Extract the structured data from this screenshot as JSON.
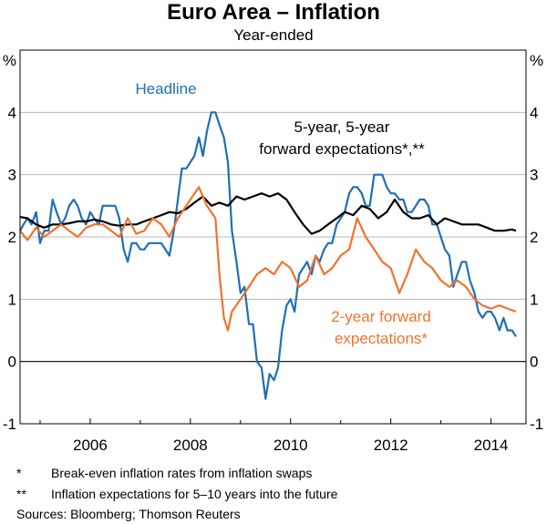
{
  "title": "Euro Area – Inflation",
  "subtitle": "Year-ended",
  "chart_data": {
    "type": "line",
    "y_unit_left": "%",
    "y_unit_right": "%",
    "ylim": [
      -1,
      5
    ],
    "yticks": [
      -1,
      0,
      1,
      2,
      3,
      4
    ],
    "xlim": [
      2004.6,
      2014.7
    ],
    "xticks": [
      2006,
      2008,
      2010,
      2012,
      2014
    ],
    "grid": "horizontal",
    "series": [
      {
        "name": "Headline",
        "label_lines": [
          "Headline"
        ],
        "color": "#1f6fb5",
        "x": [
          2004.6,
          2004.67,
          2004.75,
          2004.83,
          2004.92,
          2005.0,
          2005.08,
          2005.17,
          2005.25,
          2005.33,
          2005.42,
          2005.5,
          2005.58,
          2005.67,
          2005.75,
          2005.83,
          2005.92,
          2006.0,
          2006.08,
          2006.17,
          2006.25,
          2006.33,
          2006.42,
          2006.5,
          2006.58,
          2006.67,
          2006.75,
          2006.83,
          2006.92,
          2007.0,
          2007.08,
          2007.17,
          2007.25,
          2007.33,
          2007.42,
          2007.5,
          2007.58,
          2007.67,
          2007.75,
          2007.83,
          2007.92,
          2008.0,
          2008.08,
          2008.17,
          2008.25,
          2008.33,
          2008.42,
          2008.5,
          2008.58,
          2008.67,
          2008.75,
          2008.83,
          2008.92,
          2009.0,
          2009.08,
          2009.17,
          2009.25,
          2009.33,
          2009.42,
          2009.5,
          2009.58,
          2009.67,
          2009.75,
          2009.83,
          2009.92,
          2010.0,
          2010.08,
          2010.17,
          2010.25,
          2010.33,
          2010.42,
          2010.5,
          2010.58,
          2010.67,
          2010.75,
          2010.83,
          2010.92,
          2011.0,
          2011.08,
          2011.17,
          2011.25,
          2011.33,
          2011.42,
          2011.5,
          2011.58,
          2011.67,
          2011.75,
          2011.83,
          2011.92,
          2012.0,
          2012.08,
          2012.17,
          2012.25,
          2012.33,
          2012.42,
          2012.5,
          2012.58,
          2012.67,
          2012.75,
          2012.83,
          2012.92,
          2013.0,
          2013.08,
          2013.17,
          2013.25,
          2013.33,
          2013.42,
          2013.5,
          2013.58,
          2013.67,
          2013.75,
          2013.83,
          2013.92,
          2014.0,
          2014.08,
          2014.17,
          2014.25,
          2014.33,
          2014.42,
          2014.5
        ],
        "y": [
          2.1,
          2.2,
          2.3,
          2.2,
          2.4,
          1.9,
          2.1,
          2.1,
          2.6,
          2.4,
          2.2,
          2.3,
          2.5,
          2.6,
          2.5,
          2.3,
          2.2,
          2.4,
          2.3,
          2.2,
          2.5,
          2.5,
          2.5,
          2.5,
          2.3,
          1.8,
          1.6,
          1.9,
          1.9,
          1.8,
          1.8,
          1.9,
          1.9,
          1.9,
          1.9,
          1.8,
          1.7,
          2.1,
          2.6,
          3.1,
          3.1,
          3.2,
          3.3,
          3.6,
          3.3,
          3.7,
          4.0,
          4.0,
          3.8,
          3.6,
          3.2,
          2.1,
          1.6,
          1.1,
          1.2,
          0.6,
          0.6,
          0.0,
          -0.1,
          -0.6,
          -0.2,
          -0.3,
          -0.1,
          0.5,
          0.9,
          1.0,
          0.8,
          1.4,
          1.5,
          1.6,
          1.4,
          1.7,
          1.6,
          1.8,
          1.9,
          1.9,
          2.2,
          2.3,
          2.4,
          2.7,
          2.8,
          2.8,
          2.7,
          2.5,
          2.5,
          3.0,
          3.0,
          3.0,
          2.8,
          2.7,
          2.7,
          2.6,
          2.6,
          2.4,
          2.4,
          2.5,
          2.6,
          2.6,
          2.5,
          2.2,
          2.2,
          2.0,
          1.8,
          1.7,
          1.2,
          1.4,
          1.6,
          1.6,
          1.3,
          1.1,
          0.8,
          0.7,
          0.8,
          0.8,
          0.7,
          0.5,
          0.7,
          0.5,
          0.5,
          0.4
        ]
      },
      {
        "name": "5-year, 5-year forward expectations*,**",
        "label_lines": [
          "5-year, 5-year",
          "forward expectations*,**"
        ],
        "color": "#000000",
        "x": [
          2004.6,
          2004.75,
          2004.92,
          2005.08,
          2005.25,
          2005.42,
          2005.58,
          2005.75,
          2005.92,
          2006.08,
          2006.25,
          2006.42,
          2006.58,
          2006.75,
          2006.92,
          2007.08,
          2007.25,
          2007.42,
          2007.58,
          2007.75,
          2007.92,
          2008.08,
          2008.25,
          2008.42,
          2008.58,
          2008.75,
          2008.92,
          2009.08,
          2009.25,
          2009.42,
          2009.58,
          2009.75,
          2009.92,
          2010.08,
          2010.25,
          2010.42,
          2010.58,
          2010.75,
          2010.92,
          2011.08,
          2011.25,
          2011.42,
          2011.58,
          2011.75,
          2011.92,
          2012.08,
          2012.25,
          2012.42,
          2012.58,
          2012.75,
          2012.92,
          2013.08,
          2013.25,
          2013.42,
          2013.58,
          2013.75,
          2013.92,
          2014.08,
          2014.25,
          2014.42,
          2014.5
        ],
        "y": [
          2.32,
          2.3,
          2.2,
          2.15,
          2.2,
          2.2,
          2.22,
          2.25,
          2.25,
          2.28,
          2.25,
          2.2,
          2.18,
          2.2,
          2.2,
          2.25,
          2.3,
          2.35,
          2.4,
          2.38,
          2.45,
          2.55,
          2.65,
          2.5,
          2.55,
          2.5,
          2.65,
          2.6,
          2.65,
          2.7,
          2.65,
          2.7,
          2.6,
          2.4,
          2.2,
          2.05,
          2.1,
          2.2,
          2.3,
          2.4,
          2.35,
          2.5,
          2.45,
          2.3,
          2.4,
          2.6,
          2.4,
          2.3,
          2.3,
          2.35,
          2.2,
          2.3,
          2.25,
          2.2,
          2.2,
          2.2,
          2.15,
          2.1,
          2.1,
          2.12,
          2.1
        ]
      },
      {
        "name": "2-year forward expectations*",
        "label_lines": [
          "2-year forward",
          "expectations*"
        ],
        "color": "#f0732e",
        "x": [
          2004.6,
          2004.75,
          2004.92,
          2005.08,
          2005.25,
          2005.42,
          2005.58,
          2005.75,
          2005.92,
          2006.08,
          2006.25,
          2006.42,
          2006.58,
          2006.75,
          2006.92,
          2007.08,
          2007.25,
          2007.42,
          2007.58,
          2007.75,
          2007.92,
          2008.0,
          2008.17,
          2008.33,
          2008.5,
          2008.58,
          2008.67,
          2008.75,
          2008.83,
          2009.0,
          2009.17,
          2009.33,
          2009.5,
          2009.67,
          2009.83,
          2010.0,
          2010.17,
          2010.33,
          2010.5,
          2010.67,
          2010.83,
          2011.0,
          2011.17,
          2011.33,
          2011.5,
          2011.67,
          2011.83,
          2012.0,
          2012.17,
          2012.33,
          2012.5,
          2012.67,
          2012.83,
          2013.0,
          2013.17,
          2013.33,
          2013.5,
          2013.67,
          2013.83,
          2014.0,
          2014.17,
          2014.33,
          2014.5
        ],
        "y": [
          2.1,
          1.95,
          2.15,
          2.0,
          2.1,
          2.2,
          2.1,
          2.0,
          2.15,
          2.2,
          2.2,
          2.1,
          2.0,
          2.3,
          2.05,
          2.1,
          2.3,
          2.2,
          2.0,
          2.3,
          2.5,
          2.6,
          2.8,
          2.5,
          2.3,
          1.4,
          0.7,
          0.5,
          0.8,
          1.0,
          1.2,
          1.4,
          1.5,
          1.4,
          1.6,
          1.5,
          1.2,
          1.3,
          1.7,
          1.4,
          1.5,
          1.7,
          1.8,
          2.3,
          2.0,
          1.8,
          1.6,
          1.5,
          1.1,
          1.4,
          1.8,
          1.6,
          1.5,
          1.3,
          1.2,
          1.3,
          1.2,
          1.0,
          0.9,
          0.85,
          0.9,
          0.85,
          0.8
        ]
      }
    ]
  },
  "footnotes": [
    {
      "mark": "*",
      "text": "Break-even inflation rates from inflation swaps"
    },
    {
      "mark": "**",
      "text": "Inflation expectations for 5–10 years into the future"
    },
    {
      "mark": "",
      "text": "Sources:  Bloomberg; Thomson Reuters"
    }
  ]
}
